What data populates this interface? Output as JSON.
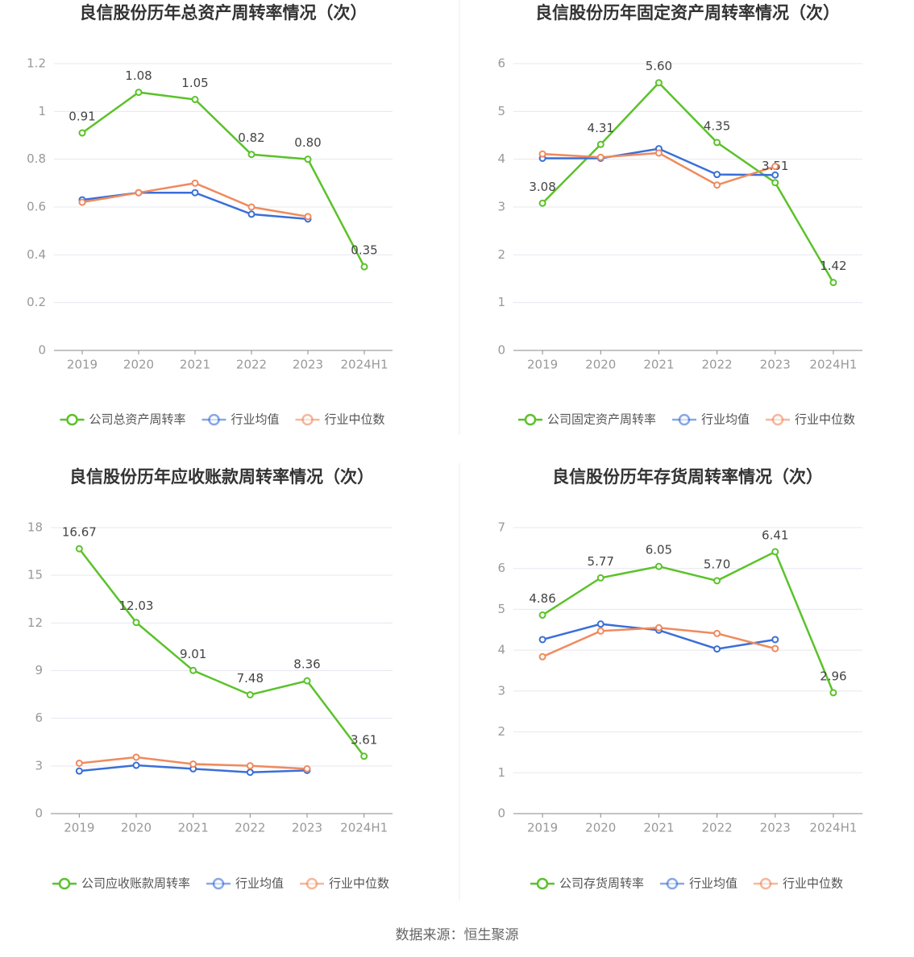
{
  "chart_data": [
    {
      "type": "line",
      "title": "良信股份历年总资产周转率情况（次）",
      "categories": [
        "2019",
        "2020",
        "2021",
        "2022",
        "2023",
        "2024H1"
      ],
      "ylim": [
        0,
        1.2
      ],
      "yticks": [
        0,
        0.2,
        0.4,
        0.6,
        0.8,
        1,
        1.2
      ],
      "grid": true,
      "series": [
        {
          "name": "公司总资产周转率",
          "color": "#5bc22a",
          "values": [
            0.91,
            1.08,
            1.05,
            0.82,
            0.8,
            0.35
          ],
          "value_labels": [
            "0.91",
            "1.08",
            "1.05",
            "0.82",
            "0.80",
            "0.35"
          ]
        },
        {
          "name": "行业均值",
          "color": "#3a6fd8",
          "values": [
            0.63,
            0.66,
            0.66,
            0.57,
            0.55,
            null
          ]
        },
        {
          "name": "行业中位数",
          "color": "#f08a5d",
          "values": [
            0.62,
            0.66,
            0.7,
            0.6,
            0.56,
            null
          ]
        }
      ]
    },
    {
      "type": "line",
      "title": "良信股份历年固定资产周转率情况（次）",
      "categories": [
        "2019",
        "2020",
        "2021",
        "2022",
        "2023",
        "2024H1"
      ],
      "ylim": [
        0,
        6
      ],
      "yticks": [
        0,
        1,
        2,
        3,
        4,
        5,
        6
      ],
      "grid": true,
      "series": [
        {
          "name": "公司固定资产周转率",
          "color": "#5bc22a",
          "values": [
            3.08,
            4.31,
            5.6,
            4.35,
            3.51,
            1.42
          ],
          "value_labels": [
            "3.08",
            "4.31",
            "5.60",
            "4.35",
            "3.51",
            "1.42"
          ]
        },
        {
          "name": "行业均值",
          "color": "#3a6fd8",
          "values": [
            4.02,
            4.02,
            4.22,
            3.68,
            3.67,
            null
          ]
        },
        {
          "name": "行业中位数",
          "color": "#f08a5d",
          "values": [
            4.11,
            4.04,
            4.13,
            3.46,
            3.85,
            null
          ]
        }
      ]
    },
    {
      "type": "line",
      "title": "良信股份历年应收账款周转率情况（次）",
      "categories": [
        "2019",
        "2020",
        "2021",
        "2022",
        "2023",
        "2024H1"
      ],
      "ylim": [
        0,
        18
      ],
      "yticks": [
        0,
        3,
        6,
        9,
        12,
        15,
        18
      ],
      "grid": true,
      "series": [
        {
          "name": "公司应收账款周转率",
          "color": "#5bc22a",
          "values": [
            16.67,
            12.03,
            9.01,
            7.48,
            8.36,
            3.61
          ]
        },
        {
          "name": "行业均值",
          "color": "#3a6fd8",
          "values": [
            2.68,
            3.04,
            2.82,
            2.6,
            2.72,
            null
          ]
        },
        {
          "name": "行业中位数",
          "color": "#f08a5d",
          "values": [
            3.17,
            3.55,
            3.12,
            3.01,
            2.82,
            null
          ]
        }
      ]
    },
    {
      "type": "line",
      "title": "良信股份历年存货周转率情况（次）",
      "categories": [
        "2019",
        "2020",
        "2021",
        "2022",
        "2023",
        "2024H1"
      ],
      "ylim": [
        0,
        7
      ],
      "yticks": [
        0,
        1,
        2,
        3,
        4,
        5,
        6,
        7
      ],
      "grid": true,
      "series": [
        {
          "name": "公司存货周转率",
          "color": "#5bc22a",
          "values": [
            4.86,
            5.77,
            6.05,
            5.7,
            6.41,
            2.96
          ],
          "value_labels": [
            "4.86",
            "5.77",
            "6.05",
            "5.70",
            "6.41",
            "2.96"
          ]
        },
        {
          "name": "行业均值",
          "color": "#3a6fd8",
          "values": [
            4.26,
            4.64,
            4.49,
            4.03,
            4.26,
            null
          ]
        },
        {
          "name": "行业中位数",
          "color": "#f08a5d",
          "values": [
            3.84,
            4.47,
            4.55,
            4.41,
            4.04,
            null
          ]
        }
      ]
    }
  ],
  "source": "数据来源：恒生聚源"
}
